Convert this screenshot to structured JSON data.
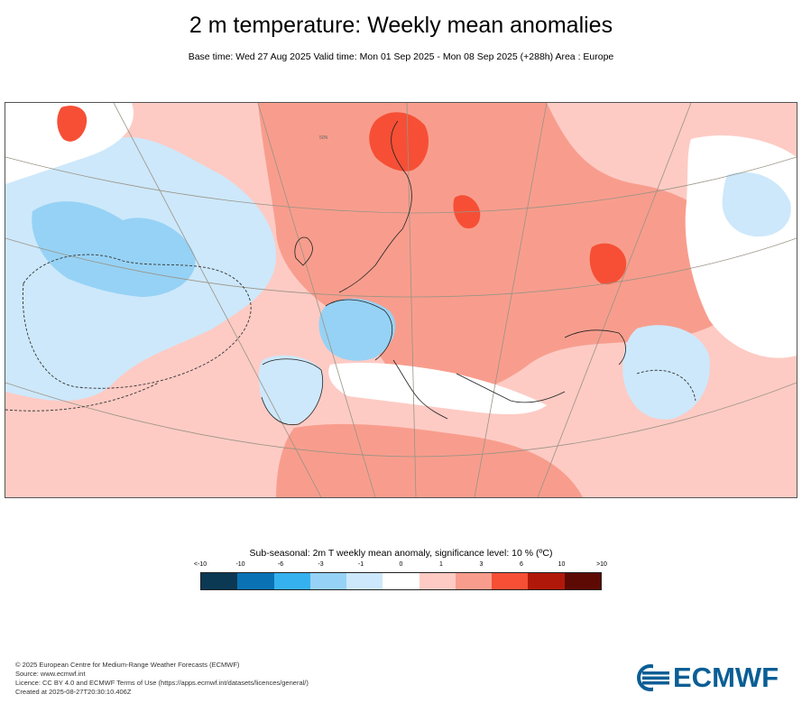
{
  "header": {
    "title": "2 m temperature: Weekly mean anomalies",
    "subtitle": "Base time: Wed 27 Aug 2025 Valid time: Mon 01 Sep 2025 - Mon 08 Sep 2025 (+288h) Area : Europe"
  },
  "map": {
    "area": "Europe",
    "graticule_label": "50N"
  },
  "legend": {
    "title": "Sub-seasonal: 2m T weekly mean anomaly, significance level: 10 % (ºC)",
    "ticks": [
      "<-10",
      "-10",
      "-6",
      "-3",
      "-1",
      "0",
      "1",
      "3",
      "6",
      "10",
      ">10"
    ],
    "colors": [
      "#0b3954",
      "#0a72b4",
      "#36b1f0",
      "#96d2f5",
      "#cde8fb",
      "#ffffff",
      "#fdcbc4",
      "#f89d8d",
      "#f64f36",
      "#b0190a",
      "#5e0a04"
    ]
  },
  "footer": {
    "lines": [
      "© 2025 European Centre for Medium-Range Weather Forecasts (ECMWF)",
      "Source: www.ecmwf.int",
      "Licence: CC BY 4.0 and ECMWF Terms of Use (https://apps.ecmwf.int/datasets/licences/general/)",
      "Created at 2025-08-27T20:30:10.406Z"
    ]
  },
  "logo": {
    "text": "ECMWF",
    "color": "#0a5e95"
  }
}
